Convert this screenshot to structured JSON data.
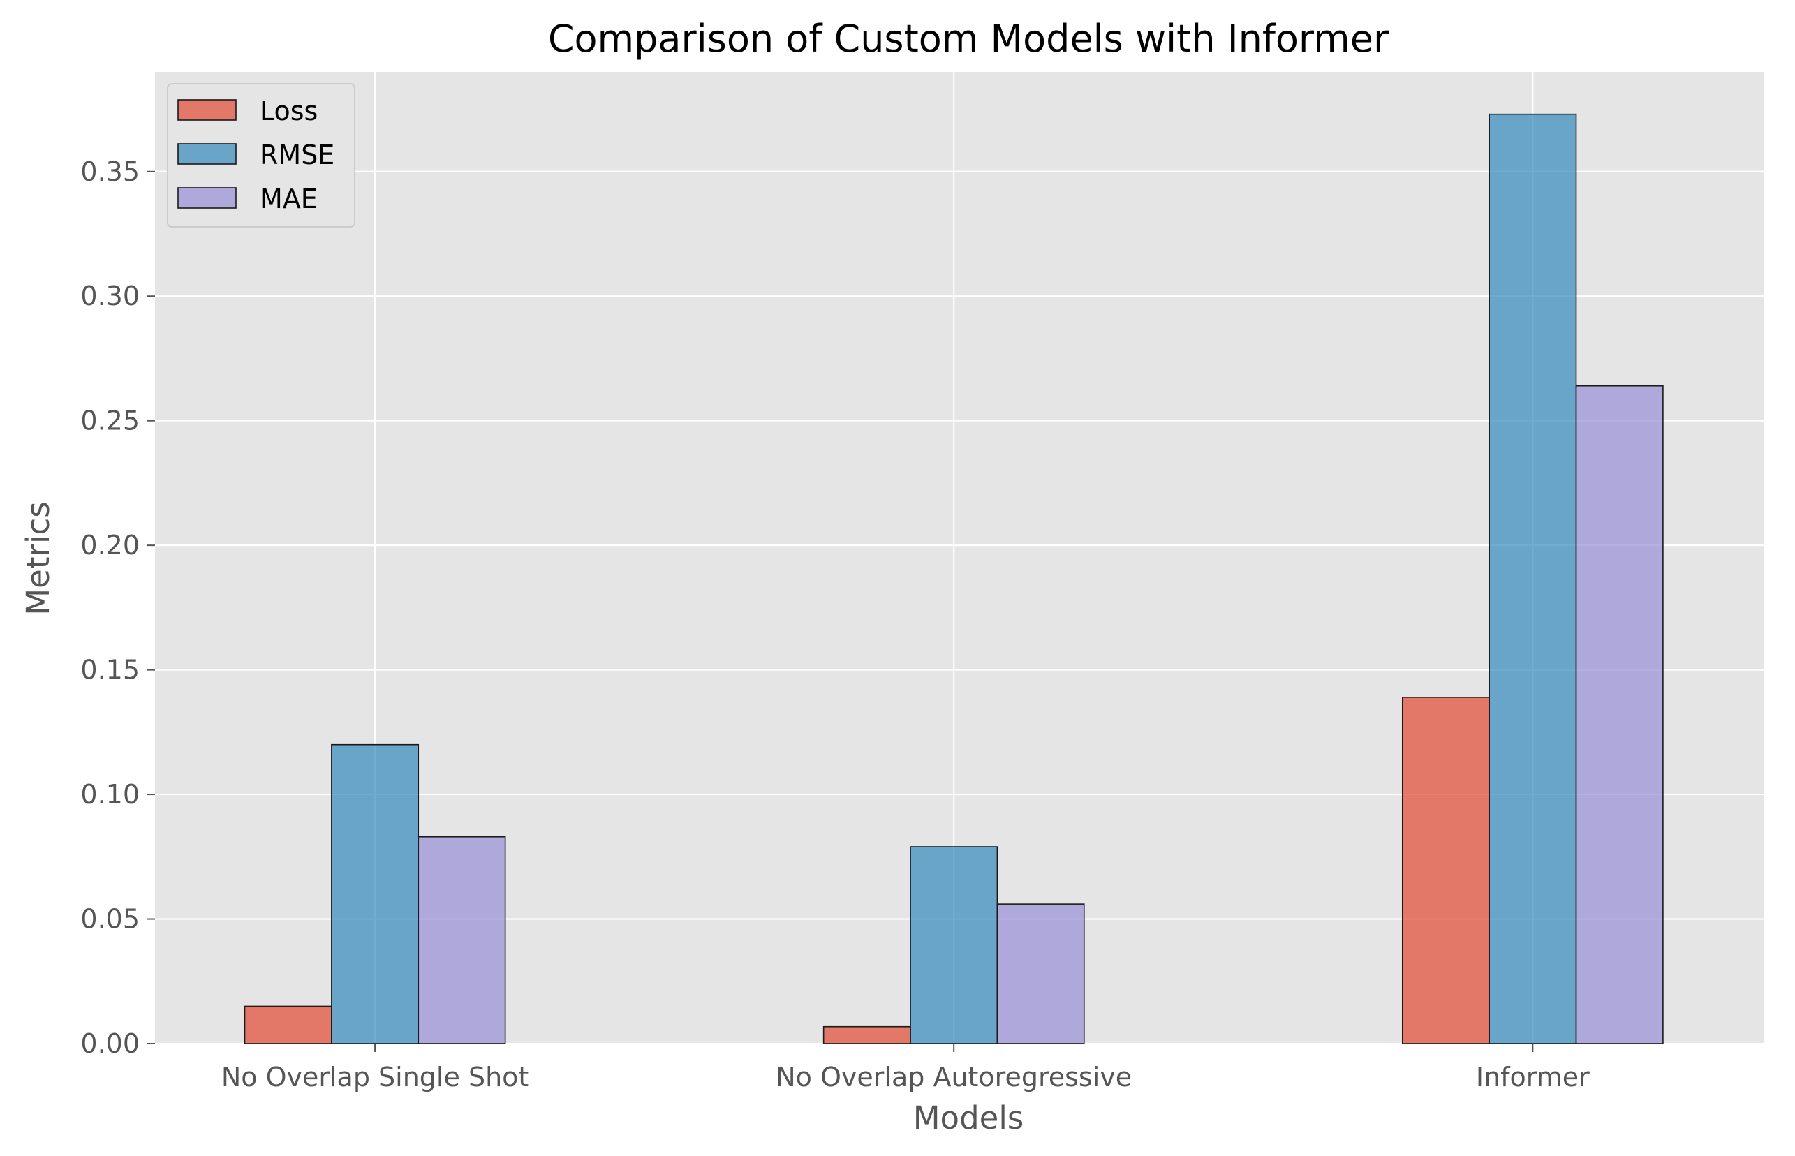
{
  "chart_data": {
    "type": "bar",
    "title": "Comparison of Custom Models with Informer",
    "xlabel": "Models",
    "ylabel": "Metrics",
    "categories": [
      "No Overlap Single Shot",
      "No Overlap Autoregressive",
      "Informer"
    ],
    "series": [
      {
        "name": "Loss",
        "color": "#e24a33",
        "values": [
          0.015,
          0.0068,
          0.139
        ]
      },
      {
        "name": "RMSE",
        "color": "#348abd",
        "values": [
          0.12,
          0.079,
          0.373
        ]
      },
      {
        "name": "MAE",
        "color": "#988ed5",
        "values": [
          0.083,
          0.056,
          0.264
        ]
      }
    ],
    "ylim": [
      0,
      0.39
    ],
    "yticks": [
      0.0,
      0.05,
      0.1,
      0.15,
      0.2,
      0.25,
      0.3,
      0.35
    ],
    "ytick_labels": [
      "0.00",
      "0.05",
      "0.10",
      "0.15",
      "0.20",
      "0.25",
      "0.30",
      "0.35"
    ],
    "grid": true,
    "legend_position": "top-left",
    "style": "ggplot",
    "bar_opacity": 0.7
  }
}
